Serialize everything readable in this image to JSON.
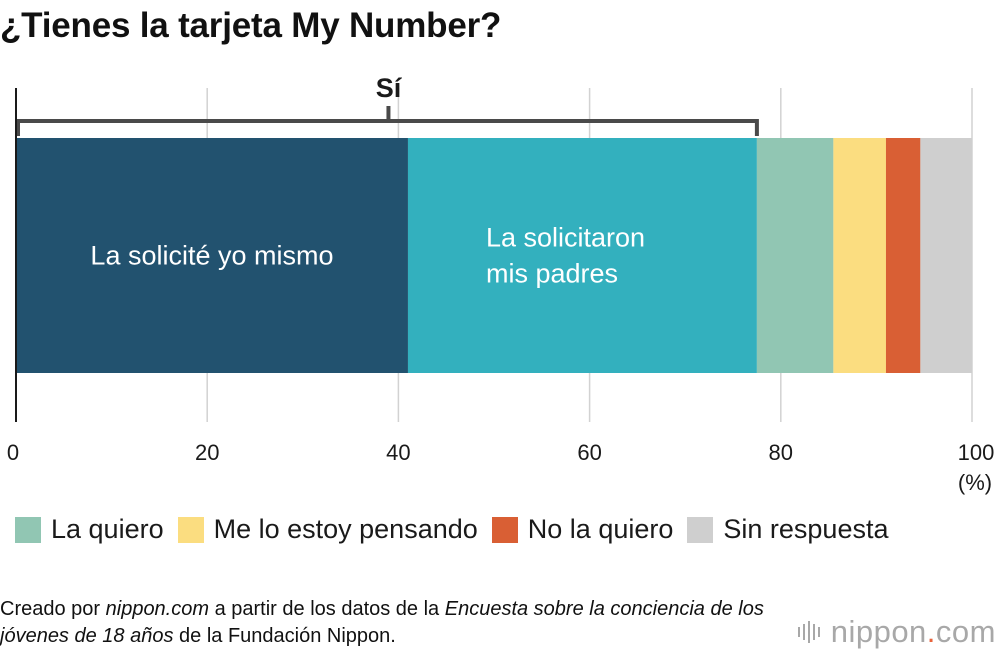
{
  "title": "¿Tienes la tarjeta My Number?",
  "chart_data": {
    "type": "bar",
    "orientation": "horizontal",
    "stacked": true,
    "title": "¿Tienes la tarjeta My Number?",
    "unit": "(%)",
    "xlim": [
      0,
      100
    ],
    "ticks": [
      0,
      20,
      40,
      60,
      80,
      100
    ],
    "grid": true,
    "bracket": {
      "label": "Sí",
      "from": 0,
      "to": 77.5
    },
    "series": [
      {
        "name": "La solicité yo mismo",
        "value": 41.0,
        "color": "#22526f",
        "label_lines": [
          "La solicité yo mismo"
        ]
      },
      {
        "name": "La solicitaron mis padres",
        "value": 36.5,
        "color": "#33b0be",
        "label_lines": [
          "La solicitaron",
          "mis padres"
        ]
      },
      {
        "name": "La quiero",
        "value": 8.0,
        "color": "#91c6b3"
      },
      {
        "name": "Me lo estoy pensando",
        "value": 5.5,
        "color": "#fbdd80"
      },
      {
        "name": "No la quiero",
        "value": 3.6,
        "color": "#d95f34"
      },
      {
        "name": "Sin respuesta",
        "value": 5.4,
        "color": "#cfcfcf"
      }
    ]
  },
  "legend": [
    {
      "label": "La quiero",
      "color": "#91c6b3"
    },
    {
      "label": "Me lo estoy pensando",
      "color": "#fbdd80"
    },
    {
      "label": "No la quiero",
      "color": "#d95f34"
    },
    {
      "label": "Sin respuesta",
      "color": "#cfcfcf"
    }
  ],
  "source": {
    "prefix": "Creado por ",
    "site": "nippon.com",
    "middle": " a partir de los datos de la ",
    "survey": "Encuesta sobre la conciencia de los jóvenes de 18 años",
    "suffix": " de la Fundación Nippon."
  },
  "logo": {
    "name": "nippon",
    "dot": ".",
    "tld": "com"
  }
}
